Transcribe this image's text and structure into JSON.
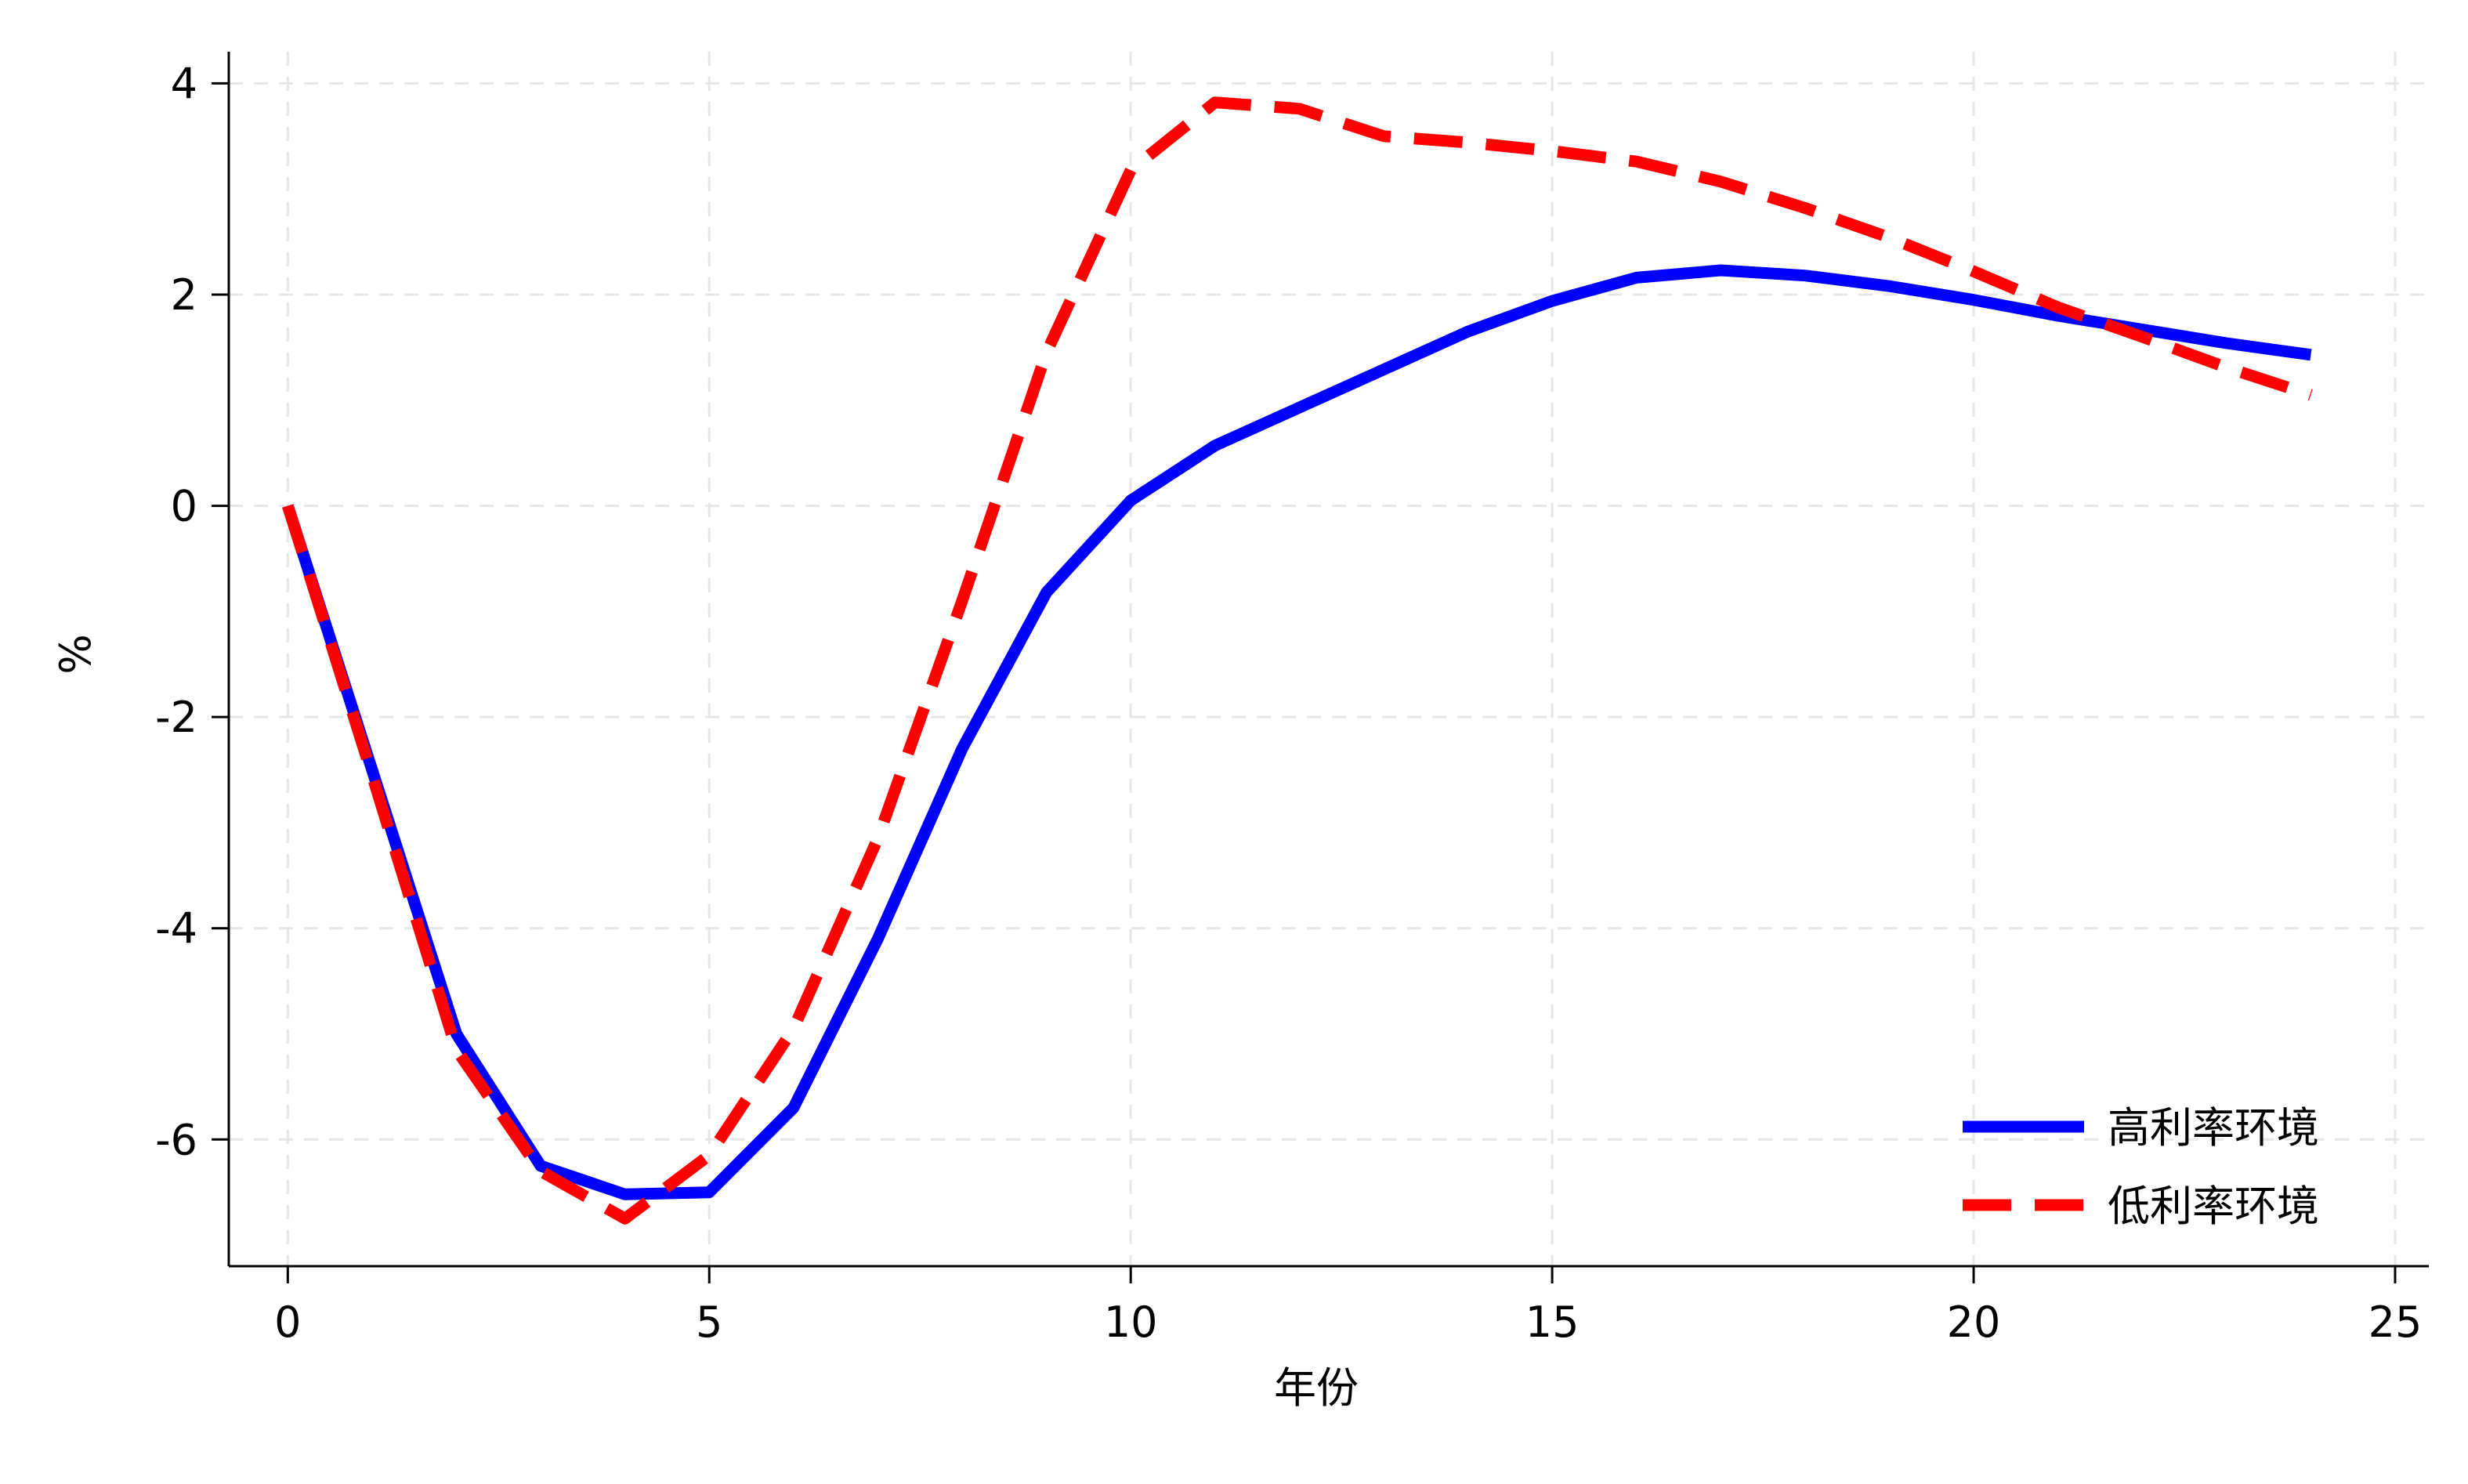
{
  "chart_data": {
    "type": "line",
    "title": "",
    "xlabel": "年份",
    "ylabel": "%",
    "xlim": [
      -0.7,
      25.4
    ],
    "ylim": [
      -7.2,
      4.3
    ],
    "xticks": [
      0,
      5,
      10,
      15,
      20,
      25
    ],
    "yticks": [
      -6,
      -4,
      -2,
      0,
      2,
      4
    ],
    "x_tick_labels": [
      "0",
      "5",
      "10",
      "15",
      "20",
      "25"
    ],
    "y_tick_labels": [
      "-6",
      "-4",
      "-2",
      "0",
      "2",
      "4"
    ],
    "grid": true,
    "legend_position": "bottom-right",
    "x": [
      0,
      1,
      2,
      3,
      4,
      5,
      6,
      7,
      8,
      9,
      10,
      11,
      12,
      13,
      14,
      15,
      16,
      17,
      18,
      19,
      20,
      21,
      22,
      23,
      24
    ],
    "series": [
      {
        "name": "高利率环境",
        "color": "#0000ff",
        "style": "solid",
        "values": [
          0,
          -2.5,
          -5.0,
          -6.25,
          -6.52,
          -6.5,
          -5.7,
          -4.1,
          -2.3,
          -0.82,
          0.05,
          0.57,
          0.93,
          1.29,
          1.65,
          1.94,
          2.16,
          2.23,
          2.18,
          2.08,
          1.95,
          1.8,
          1.67,
          1.54,
          1.43
        ]
      },
      {
        "name": "低利率环境",
        "color": "#ff0000",
        "style": "dashed",
        "values": [
          0,
          -2.55,
          -5.15,
          -6.3,
          -6.75,
          -6.15,
          -4.95,
          -3.15,
          -0.9,
          1.45,
          3.18,
          3.82,
          3.76,
          3.5,
          3.44,
          3.36,
          3.26,
          3.07,
          2.82,
          2.54,
          2.22,
          1.88,
          1.6,
          1.31,
          1.05
        ]
      }
    ]
  }
}
